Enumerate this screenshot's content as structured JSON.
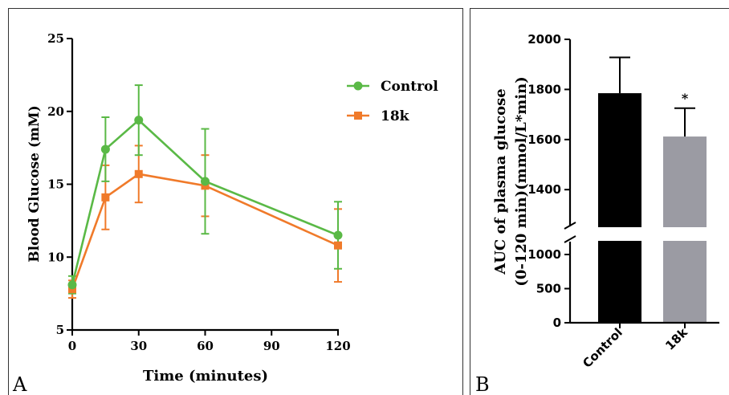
{
  "panel_a": {
    "letter": "A",
    "chart_data": {
      "type": "line",
      "x": [
        0,
        15,
        30,
        60,
        120
      ],
      "xticks": [
        "0",
        "30",
        "60",
        "90",
        "120"
      ],
      "xtick_values": [
        0,
        30,
        60,
        90,
        120
      ],
      "yticks": [
        "5",
        "10",
        "15",
        "20",
        "25"
      ],
      "ytick_values": [
        5,
        10,
        15,
        20,
        25
      ],
      "xlim": [
        0,
        120
      ],
      "ylim": [
        5,
        25
      ],
      "xlabel": "Time (minutes)",
      "ylabel": "Blood Glucose (mM)",
      "legend_position": "top-right",
      "series": [
        {
          "name": "Control",
          "color": "#5ab946",
          "marker": "circle",
          "values": [
            8.1,
            17.4,
            19.4,
            15.2,
            11.5
          ],
          "err_plus": [
            0.6,
            2.2,
            2.4,
            3.6,
            2.3
          ],
          "err_minus": [
            0.6,
            2.2,
            2.4,
            3.6,
            2.3
          ]
        },
        {
          "name": "18k",
          "color": "#f07a2a",
          "marker": "square",
          "values": [
            7.8,
            14.1,
            15.7,
            14.9,
            10.8
          ],
          "err_plus": [
            0.6,
            2.2,
            1.95,
            2.1,
            2.5
          ],
          "err_minus": [
            0.6,
            2.2,
            1.95,
            2.1,
            2.5
          ]
        }
      ]
    }
  },
  "panel_b": {
    "letter": "B",
    "chart_data": {
      "type": "bar",
      "categories": [
        "Control",
        "18k"
      ],
      "values": [
        1785,
        1612
      ],
      "errors": [
        143,
        113
      ],
      "colors": [
        "#000000",
        "#9b9ba3"
      ],
      "significance": [
        "",
        "*"
      ],
      "ylabel_lines": [
        "AUC of plasma glucose",
        "(0-120 min)(mmol/L*min)"
      ],
      "axis_break": [
        1200,
        1250
      ],
      "lower_segment_ylim": [
        0,
        1200
      ],
      "upper_segment_ylim": [
        1250,
        2000
      ],
      "lower_ticks": [
        "0",
        "500",
        "1000"
      ],
      "lower_tick_values": [
        0,
        500,
        1000
      ],
      "upper_ticks": [
        "1400",
        "1600",
        "1800",
        "2000"
      ],
      "upper_tick_values": [
        1400,
        1600,
        1800,
        2000
      ]
    }
  }
}
